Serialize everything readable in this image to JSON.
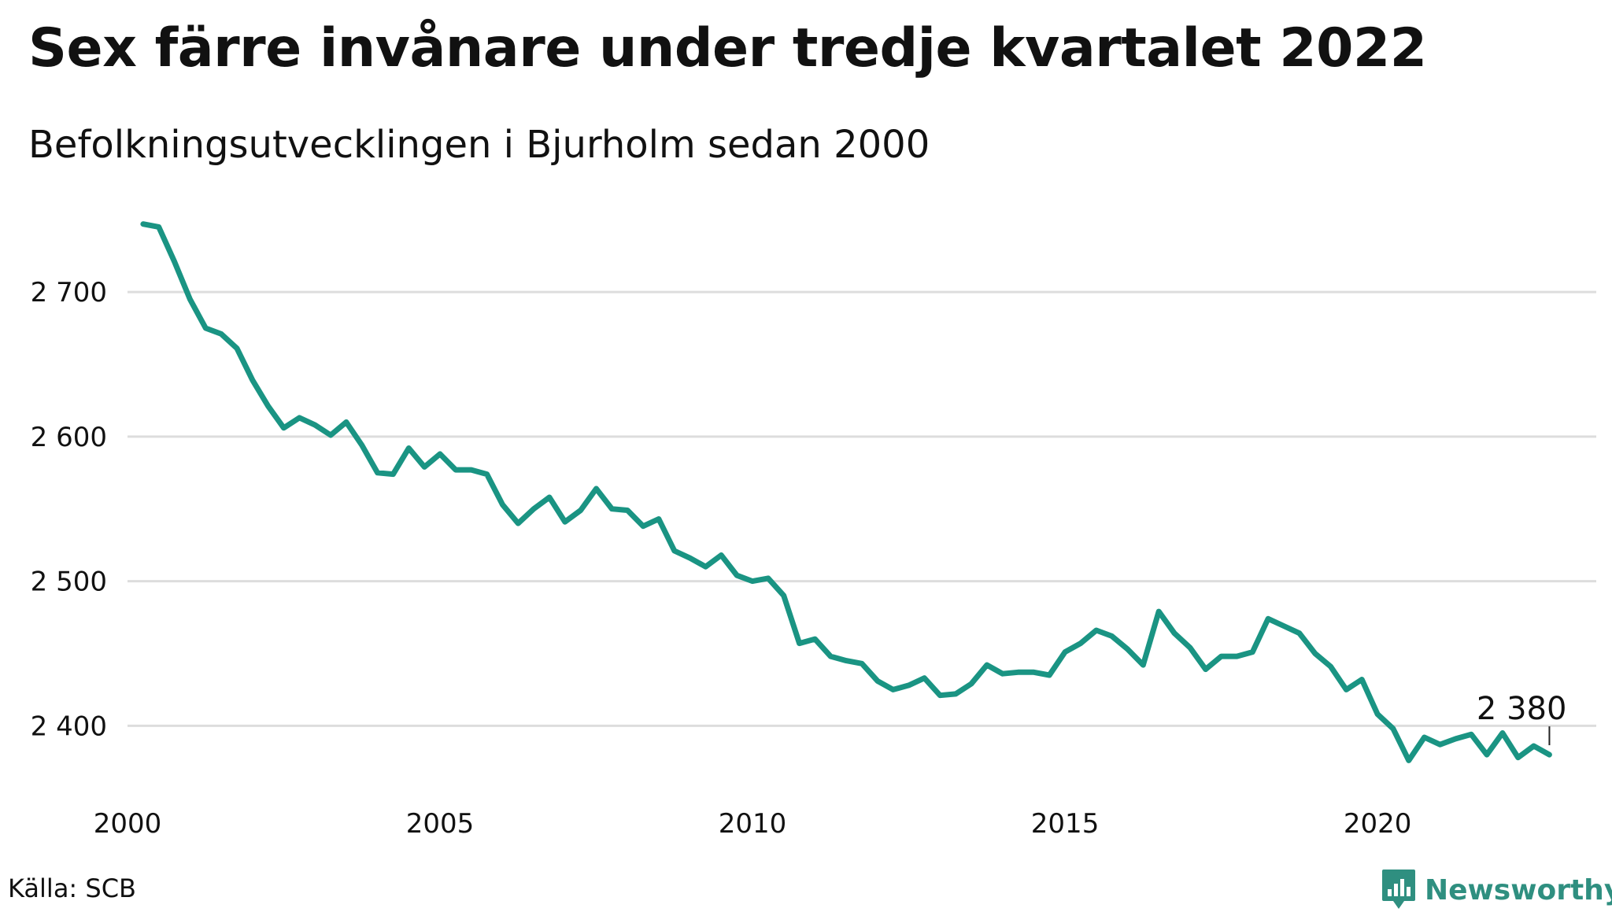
{
  "title": "Sex färre invånare under tredje kvartalet 2022",
  "subtitle": "Befolkningsutvecklingen i Bjurholm sedan 2000",
  "source": "Källa: SCB",
  "brand": {
    "name": "Newsworthy",
    "icon": "bar-chart-speech-bubble-icon",
    "color": "#2f8f80"
  },
  "chart_data": {
    "type": "line",
    "title": "Sex färre invånare under tredje kvartalet 2022",
    "subtitle": "Befolkningsutvecklingen i Bjurholm sedan 2000",
    "xlim": [
      2000,
      2023.5
    ],
    "ylim": [
      2355,
      2755
    ],
    "x_ticks": [
      2000,
      2005,
      2010,
      2015,
      2020
    ],
    "x_tick_labels": [
      "2000",
      "2005",
      "2010",
      "2015",
      "2020"
    ],
    "y_ticks": [
      2400,
      2500,
      2600,
      2700
    ],
    "y_tick_labels": [
      "2 400",
      "2 500",
      "2 600",
      "2 700"
    ],
    "grid": "horizontal",
    "line_color": "#1a9483",
    "series": [
      {
        "x": [
          2000.25,
          2000.5,
          2000.75,
          2001.0,
          2001.25,
          2001.5,
          2001.75,
          2002.0,
          2002.25,
          2002.5,
          2002.75,
          2003.0,
          2003.25,
          2003.5,
          2003.75,
          2004.0,
          2004.25,
          2004.5,
          2004.75,
          2005.0,
          2005.25,
          2005.5,
          2005.75,
          2006.0,
          2006.25,
          2006.5,
          2006.75,
          2007.0,
          2007.25,
          2007.5,
          2007.75,
          2008.0,
          2008.25,
          2008.5,
          2008.75,
          2009.0,
          2009.25,
          2009.5,
          2009.75,
          2010.0,
          2010.25,
          2010.5,
          2010.75,
          2011.0,
          2011.25,
          2011.5,
          2011.75,
          2012.0,
          2012.25,
          2012.5,
          2012.75,
          2013.0,
          2013.25,
          2013.5,
          2013.75,
          2014.0,
          2014.25,
          2014.5,
          2014.75,
          2015.0,
          2015.25,
          2015.5,
          2015.75,
          2016.0,
          2016.25,
          2016.5,
          2016.75,
          2017.0,
          2017.25,
          2017.5,
          2017.75,
          2018.0,
          2018.25,
          2018.5,
          2018.75,
          2019.0,
          2019.25,
          2019.5,
          2019.75,
          2020.0,
          2020.25,
          2020.5,
          2020.75,
          2021.0,
          2021.25,
          2021.5,
          2021.75,
          2022.0,
          2022.25,
          2022.5,
          2022.75
        ],
        "values": [
          2747,
          2745,
          2721,
          2695,
          2675,
          2671,
          2661,
          2639,
          2621,
          2606,
          2613,
          2608,
          2601,
          2610,
          2594,
          2575,
          2574,
          2592,
          2579,
          2588,
          2577,
          2577,
          2574,
          2553,
          2540,
          2550,
          2558,
          2541,
          2549,
          2564,
          2550,
          2549,
          2538,
          2543,
          2521,
          2516,
          2510,
          2518,
          2504,
          2500,
          2502,
          2490,
          2457,
          2460,
          2448,
          2445,
          2443,
          2431,
          2425,
          2428,
          2433,
          2421,
          2422,
          2429,
          2442,
          2436,
          2437,
          2437,
          2435,
          2451,
          2457,
          2466,
          2462,
          2453,
          2442,
          2479,
          2464,
          2454,
          2439,
          2448,
          2448,
          2451,
          2474,
          2469,
          2464,
          2450,
          2441,
          2425,
          2432,
          2408,
          2398,
          2376,
          2392,
          2387,
          2391,
          2394,
          2380,
          2395,
          2378,
          2386,
          2380
        ]
      }
    ],
    "annotation": {
      "x": 2022.75,
      "y": 2380,
      "label": "2 380"
    }
  }
}
